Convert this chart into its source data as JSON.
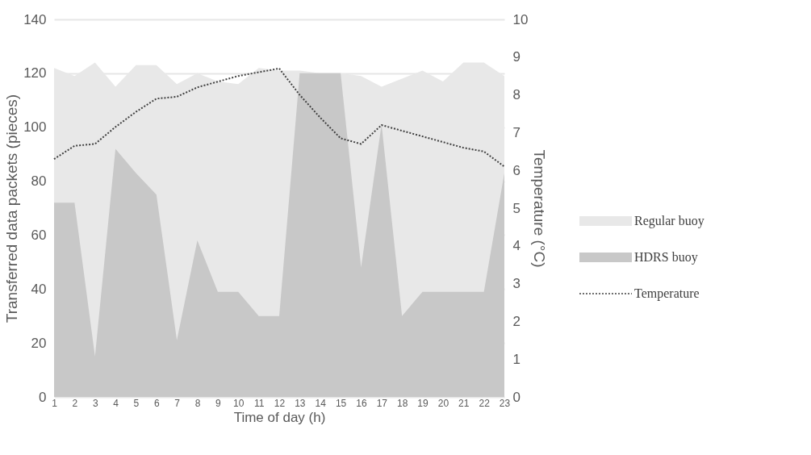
{
  "chart_data": {
    "type": "area",
    "xlabel": "Time of day (h)",
    "ylabel": "Transferred data packets (pieces)",
    "y2label": "Temperature (°C)",
    "x": [
      1,
      2,
      3,
      4,
      5,
      6,
      7,
      8,
      9,
      10,
      11,
      12,
      13,
      14,
      15,
      16,
      17,
      18,
      19,
      20,
      21,
      22,
      23
    ],
    "xlim": [
      1,
      23
    ],
    "xticks": [
      1,
      2,
      3,
      4,
      5,
      6,
      7,
      8,
      9,
      10,
      11,
      12,
      13,
      14,
      15,
      16,
      17,
      18,
      19,
      20,
      21,
      22,
      23
    ],
    "ylim": [
      0,
      140
    ],
    "yticks": [
      0,
      20,
      40,
      60,
      80,
      100,
      120,
      140
    ],
    "y2lim": [
      0,
      10
    ],
    "y2ticks": [
      0,
      1,
      2,
      3,
      4,
      5,
      6,
      7,
      8,
      9,
      10
    ],
    "grid": "y",
    "legend": "right",
    "series": [
      {
        "name": "Regular buoy",
        "type": "area",
        "color": "#e8e8e8",
        "values": [
          122,
          119,
          124,
          115,
          123,
          123,
          116,
          120,
          117,
          116,
          122,
          121,
          121,
          120,
          120,
          119,
          115,
          118,
          121,
          117,
          124,
          124,
          119
        ]
      },
      {
        "name": "HDRS buoy",
        "type": "area",
        "color": "#c8c8c8",
        "values": [
          72,
          72,
          15,
          92,
          83,
          75,
          21,
          58,
          39,
          39,
          30,
          30,
          120,
          120,
          120,
          48,
          101,
          30,
          39,
          39,
          39,
          39,
          83
        ]
      },
      {
        "name": "Temperature",
        "type": "line",
        "axis": "y2",
        "color": "#404040",
        "line_style": "dotted",
        "values": [
          6.3,
          6.65,
          6.7,
          7.15,
          7.55,
          7.9,
          7.95,
          8.2,
          8.35,
          8.5,
          8.6,
          8.7,
          8.0,
          7.4,
          6.85,
          6.7,
          7.2,
          7.05,
          6.9,
          6.75,
          6.6,
          6.5,
          6.1
        ]
      }
    ]
  }
}
